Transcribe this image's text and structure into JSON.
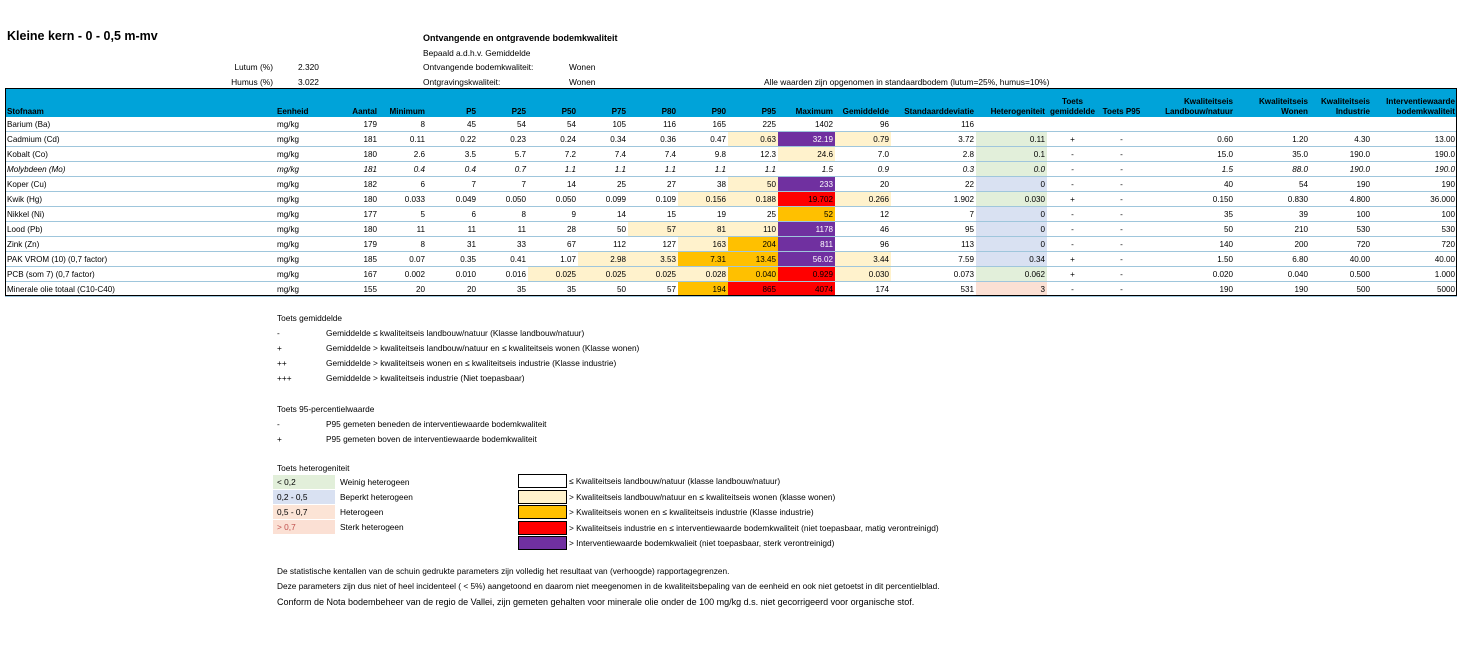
{
  "page": {
    "title": "Kleine kern - 0 - 0,5 m-mv",
    "heading": "Ontvangende en ontgravende bodemkwaliteit",
    "method": "Bepaald a.d.h.v. Gemiddelde",
    "params": [
      {
        "label": "Lutum (%)",
        "value": "2.320"
      },
      {
        "label": "Humus (%)",
        "value": "3.022"
      }
    ],
    "receiving_label": "Ontvangende bodemkwaliteit:",
    "receiving_value": "Wonen",
    "excavation_label": "Ontgravingskwaliteit:",
    "excavation_value": "Wonen",
    "standard_note": "Alle waarden zijn opgenomen in standaardbodem (lutum=25%, humus=10%)"
  },
  "colors": {
    "header": "#00a3d9",
    "wonen": "#fff2cc",
    "industrie": "#ffc000",
    "niet_toepasbaar": "#ff0000",
    "interventie": "#7030a0",
    "het_weinig": "#e2efda",
    "het_beperkt": "#d9e1f2",
    "het_hetero": "#fce4d6",
    "het_sterk": "#fbe0d4"
  },
  "table": {
    "columns": [
      "Stofnaam",
      "Eenheid",
      "Aantal",
      "Minimum",
      "P5",
      "P25",
      "P50",
      "P75",
      "P80",
      "P90",
      "P95",
      "Maximum",
      "Gemiddelde",
      "Standaarddeviatie",
      "Heterogeniteit",
      "Toets gemiddelde",
      "Toets P95",
      "Kwaliteitseis Landbouw/natuur",
      "Kwaliteitseis Wonen",
      "Kwaliteitseis Industrie",
      "Interventiewaarde bodemkwaliteit"
    ],
    "rows": [
      {
        "cells": [
          "Barium (Ba)",
          "mg/kg",
          "179",
          "8",
          "45",
          "54",
          "54",
          "105",
          "116",
          "165",
          "225",
          "1402",
          "96",
          "116",
          "",
          "",
          "",
          "",
          "",
          "",
          ""
        ],
        "italic": false,
        "bg": {}
      },
      {
        "cells": [
          "Cadmium (Cd)",
          "mg/kg",
          "181",
          "0.11",
          "0.22",
          "0.23",
          "0.24",
          "0.34",
          "0.36",
          "0.47",
          "0.63",
          "32.19",
          "0.79",
          "3.72",
          "0.11",
          "+",
          "-",
          "0.60",
          "1.20",
          "4.30",
          "13.00"
        ],
        "italic": false,
        "bg": {
          "10": "wonen",
          "11": "interventie",
          "12": "wonen",
          "14": "het_weinig"
        }
      },
      {
        "cells": [
          "Kobalt (Co)",
          "mg/kg",
          "180",
          "2.6",
          "3.5",
          "5.7",
          "7.2",
          "7.4",
          "7.4",
          "9.8",
          "12.3",
          "24.6",
          "7.0",
          "2.8",
          "0.1",
          "-",
          "-",
          "15.0",
          "35.0",
          "190.0",
          "190.0"
        ],
        "italic": false,
        "bg": {
          "11": "wonen",
          "14": "het_weinig"
        }
      },
      {
        "cells": [
          "Molybdeen (Mo)",
          "mg/kg",
          "181",
          "0.4",
          "0.4",
          "0.7",
          "1.1",
          "1.1",
          "1.1",
          "1.1",
          "1.1",
          "1.5",
          "0.9",
          "0.3",
          "0.0",
          "-",
          "-",
          "1.5",
          "88.0",
          "190.0",
          "190.0"
        ],
        "italic": true,
        "bg": {
          "14": "het_weinig"
        }
      },
      {
        "cells": [
          "Koper (Cu)",
          "mg/kg",
          "182",
          "6",
          "7",
          "7",
          "14",
          "25",
          "27",
          "38",
          "50",
          "233",
          "20",
          "22",
          "0",
          "-",
          "-",
          "40",
          "54",
          "190",
          "190"
        ],
        "italic": false,
        "bg": {
          "10": "wonen",
          "11": "interventie",
          "14": "het_beperkt"
        }
      },
      {
        "cells": [
          "Kwik (Hg)",
          "mg/kg",
          "180",
          "0.033",
          "0.049",
          "0.050",
          "0.050",
          "0.099",
          "0.109",
          "0.156",
          "0.188",
          "19.702",
          "0.266",
          "1.902",
          "0.030",
          "+",
          "-",
          "0.150",
          "0.830",
          "4.800",
          "36.000"
        ],
        "italic": false,
        "bg": {
          "9": "wonen",
          "10": "wonen",
          "11": "niet_toepasbaar",
          "12": "wonen",
          "14": "het_weinig"
        }
      },
      {
        "cells": [
          "Nikkel (Ni)",
          "mg/kg",
          "177",
          "5",
          "6",
          "8",
          "9",
          "14",
          "15",
          "19",
          "25",
          "52",
          "12",
          "7",
          "0",
          "-",
          "-",
          "35",
          "39",
          "100",
          "100"
        ],
        "italic": false,
        "bg": {
          "11": "industrie",
          "14": "het_beperkt"
        }
      },
      {
        "cells": [
          "Lood (Pb)",
          "mg/kg",
          "180",
          "11",
          "11",
          "11",
          "28",
          "50",
          "57",
          "81",
          "110",
          "1178",
          "46",
          "95",
          "0",
          "-",
          "-",
          "50",
          "210",
          "530",
          "530"
        ],
        "italic": false,
        "bg": {
          "8": "wonen",
          "9": "wonen",
          "10": "wonen",
          "11": "interventie",
          "14": "het_beperkt"
        }
      },
      {
        "cells": [
          "Zink (Zn)",
          "mg/kg",
          "179",
          "8",
          "31",
          "33",
          "67",
          "112",
          "127",
          "163",
          "204",
          "811",
          "96",
          "113",
          "0",
          "-",
          "-",
          "140",
          "200",
          "720",
          "720"
        ],
        "italic": false,
        "bg": {
          "9": "wonen",
          "10": "industrie",
          "11": "interventie",
          "14": "het_beperkt"
        }
      },
      {
        "cells": [
          "PAK VROM (10) (0,7 factor)",
          "mg/kg",
          "185",
          "0.07",
          "0.35",
          "0.41",
          "1.07",
          "2.98",
          "3.53",
          "7.31",
          "13.45",
          "56.02",
          "3.44",
          "7.59",
          "0.34",
          "+",
          "-",
          "1.50",
          "6.80",
          "40.00",
          "40.00"
        ],
        "italic": false,
        "bg": {
          "7": "wonen",
          "8": "wonen",
          "9": "industrie",
          "10": "industrie",
          "11": "interventie",
          "12": "wonen",
          "14": "het_beperkt"
        }
      },
      {
        "cells": [
          "PCB (som 7) (0,7 factor)",
          "mg/kg",
          "167",
          "0.002",
          "0.010",
          "0.016",
          "0.025",
          "0.025",
          "0.025",
          "0.028",
          "0.040",
          "0.929",
          "0.030",
          "0.073",
          "0.062",
          "+",
          "-",
          "0.020",
          "0.040",
          "0.500",
          "1.000"
        ],
        "italic": false,
        "bg": {
          "6": "wonen",
          "7": "wonen",
          "8": "wonen",
          "9": "wonen",
          "10": "industrie",
          "11": "niet_toepasbaar",
          "12": "wonen",
          "14": "het_weinig"
        }
      },
      {
        "cells": [
          "Minerale olie totaal (C10-C40)",
          "mg/kg",
          "155",
          "20",
          "20",
          "35",
          "35",
          "50",
          "57",
          "194",
          "865",
          "4074",
          "174",
          "531",
          "3",
          "-",
          "-",
          "190",
          "190",
          "500",
          "5000"
        ],
        "italic": false,
        "bg": {
          "9": "industrie",
          "10": "niet_toepasbaar",
          "11": "niet_toepasbaar",
          "14": "het_sterk"
        }
      }
    ]
  },
  "legend_gemiddelde": {
    "title": "Toets gemiddelde",
    "items": [
      {
        "symbol": "-",
        "text": "Gemiddelde ≤ kwaliteitseis landbouw/natuur (Klasse landbouw/natuur)"
      },
      {
        "symbol": "+",
        "text": "Gemiddelde > kwaliteitseis landbouw/natuur en ≤ kwaliteitseis wonen (Klasse wonen)"
      },
      {
        "symbol": "++",
        "text": "Gemiddelde > kwaliteitseis wonen en ≤ kwaliteitseis industrie (Klasse industrie)"
      },
      {
        "symbol": "+++",
        "text": "Gemiddelde > kwaliteitseis industrie (Niet toepasbaar)"
      }
    ]
  },
  "legend_p95": {
    "title": "Toets 95-percentielwaarde",
    "items": [
      {
        "symbol": "-",
        "text": "P95 gemeten beneden de interventiewaarde bodemkwaliteit"
      },
      {
        "symbol": "+",
        "text": "P95 gemeten boven de interventiewaarde bodemkwaliteit"
      }
    ]
  },
  "legend_het": {
    "title": "Toets heterogeniteit",
    "items": [
      {
        "range": "< 0,2",
        "text": "Weinig heterogeen"
      },
      {
        "range": "0,2 - 0,5",
        "text": "Beperkt heterogeen"
      },
      {
        "range": "0,5 - 0,7",
        "text": "Heterogeen"
      },
      {
        "range": "> 0,7",
        "text": "Sterk heterogeen"
      }
    ]
  },
  "legend_colors": [
    {
      "text": "≤ Kwaliteitseis landbouw/natuur (klasse landbouw/natuur)"
    },
    {
      "text": "> Kwaliteitseis landbouw/natuur en ≤ kwaliteitseis wonen (klasse wonen)"
    },
    {
      "text": "> Kwaliteitseis wonen en ≤ kwaliteitseis industrie (Klasse industrie)"
    },
    {
      "text": "> Kwaliteitseis industrie en ≤ interventiewaarde bodemkwaliteit (niet toepasbaar, matig verontreinigd)"
    },
    {
      "text": "> Interventiewaarde bodemkwalieit (niet toepasbaar, sterk verontreinigd)"
    }
  ],
  "footnotes": [
    "De statistische kentallen van de schuin gedrukte parameters zijn volledig het resultaat van (verhoogde) rapportagegrenzen.",
    "Deze parameters zijn dus niet of heel incidenteel ( < 5%) aangetoond en daarom niet meegenomen in de kwaliteitsbepaling van de eenheid en ook niet getoetst in dit percentielblad.",
    "Conform de Nota bodembeheer van de regio de Vallei, zijn gemeten gehalten voor minerale olie onder de 100 mg/kg d.s. niet gecorrigeerd voor organische stof."
  ]
}
